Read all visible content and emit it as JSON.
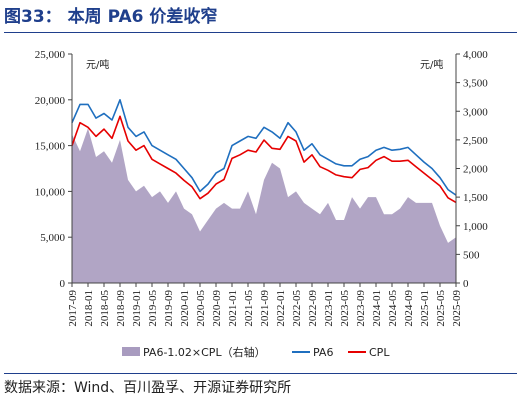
{
  "title": {
    "number": "图33：",
    "text": "本周 PA6 价差收窄"
  },
  "source": "数据来源：Wind、百川盈孚、开源证券研究所",
  "chart_data": {
    "type": "line",
    "left_unit": "元/吨",
    "right_unit": "元/吨",
    "ylim": [
      0,
      25000
    ],
    "y2lim": [
      0,
      4000
    ],
    "yticks": [
      "0",
      "5,000",
      "10,000",
      "15,000",
      "20,000",
      "25,000"
    ],
    "y2ticks": [
      "0",
      "500",
      "1,000",
      "1,500",
      "2,000",
      "2,500",
      "3,000",
      "3,500",
      "4,000"
    ],
    "xticks": [
      "2017-09",
      "2018-01",
      "2018-05",
      "2018-09",
      "2019-01",
      "2019-05",
      "2019-09",
      "2020-01",
      "2020-05",
      "2020-09",
      "2021-01",
      "2021-05",
      "2021-09",
      "2022-01",
      "2022-05",
      "2022-09",
      "2023-01",
      "2023-05",
      "2023-09",
      "2024-01",
      "2024-05",
      "2024-09",
      "2025-01",
      "2025-05",
      "2025-09"
    ],
    "x": [
      "2017-09",
      "2017-11",
      "2018-01",
      "2018-03",
      "2018-05",
      "2018-07",
      "2018-09",
      "2018-11",
      "2019-01",
      "2019-03",
      "2019-05",
      "2019-07",
      "2019-09",
      "2019-11",
      "2020-01",
      "2020-03",
      "2020-05",
      "2020-07",
      "2020-09",
      "2020-11",
      "2021-01",
      "2021-03",
      "2021-05",
      "2021-07",
      "2021-09",
      "2021-11",
      "2022-01",
      "2022-03",
      "2022-05",
      "2022-07",
      "2022-09",
      "2022-11",
      "2023-01",
      "2023-03",
      "2023-05",
      "2023-07",
      "2023-09",
      "2023-11",
      "2024-01",
      "2024-03",
      "2024-05",
      "2024-07",
      "2024-09",
      "2024-11",
      "2025-01",
      "2025-03",
      "2025-05",
      "2025-07",
      "2025-09"
    ],
    "series": [
      {
        "name": "PA6-1.02×CPL（右轴）",
        "type": "area",
        "axis": "right",
        "color": "#a89bbf",
        "values": [
          2600,
          2300,
          2700,
          2200,
          2300,
          2100,
          2500,
          1800,
          1600,
          1700,
          1500,
          1600,
          1400,
          1600,
          1300,
          1200,
          900,
          1100,
          1300,
          1400,
          1300,
          1300,
          1600,
          1200,
          1800,
          2100,
          2000,
          1500,
          1600,
          1400,
          1300,
          1200,
          1400,
          1100,
          1100,
          1500,
          1300,
          1500,
          1500,
          1200,
          1200,
          1300,
          1500,
          1400,
          1400,
          1400,
          1000,
          700,
          800
        ]
      },
      {
        "name": "PA6",
        "type": "line",
        "axis": "left",
        "color": "#1f6fbf",
        "values": [
          17500,
          19500,
          19500,
          18000,
          18500,
          17800,
          20000,
          17000,
          16000,
          16500,
          15000,
          14500,
          14000,
          13500,
          12500,
          11500,
          10000,
          10800,
          12000,
          12500,
          15000,
          15500,
          16000,
          15800,
          17000,
          16500,
          15800,
          17500,
          16500,
          14500,
          15200,
          14000,
          13500,
          13000,
          12800,
          12800,
          13500,
          13800,
          14500,
          14800,
          14500,
          14600,
          14800,
          14000,
          13200,
          12500,
          11500,
          10200,
          9600
        ]
      },
      {
        "name": "CPL",
        "type": "line",
        "axis": "left",
        "color": "#e60000",
        "values": [
          15000,
          17500,
          17000,
          16000,
          16800,
          15800,
          18200,
          15500,
          14500,
          15000,
          13500,
          13000,
          12500,
          12000,
          11200,
          10500,
          9200,
          9800,
          10800,
          11300,
          13600,
          14000,
          14500,
          14300,
          15600,
          14700,
          14600,
          16000,
          15500,
          13200,
          14000,
          12700,
          12300,
          11800,
          11600,
          11500,
          12400,
          12600,
          13400,
          13800,
          13300,
          13300,
          13400,
          12700,
          12000,
          11300,
          10600,
          9300,
          8800
        ]
      }
    ],
    "legend_position": "bottom",
    "grid": false
  }
}
